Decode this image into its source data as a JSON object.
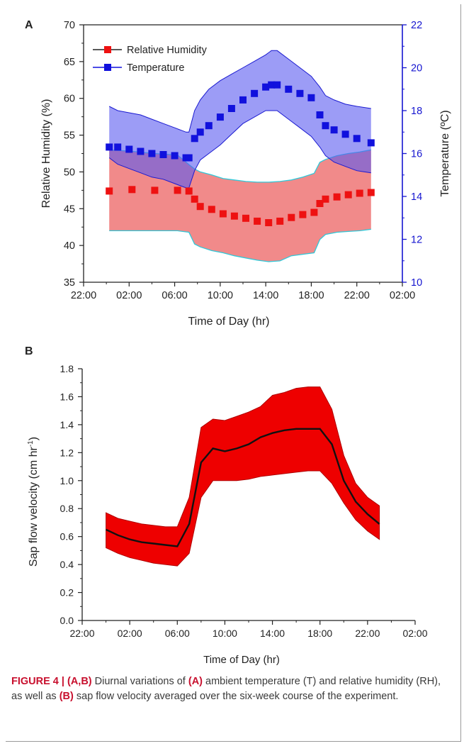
{
  "chart_data": [
    {
      "panel_label": "A",
      "type": "line",
      "xlabel": "Time of Day (hr)",
      "ylabel_left": "Relative Humidity (%)",
      "ylabel_right": "Temperature (ºC)",
      "x_tick_labels": [
        "22:00",
        "02:00",
        "06:00",
        "10:00",
        "14:00",
        "18:00",
        "22:00",
        "02:00"
      ],
      "x_ticks_hours": [
        22,
        26,
        30,
        34,
        38,
        42,
        46,
        50
      ],
      "xlim_hours": [
        22,
        50
      ],
      "ylim_left": [
        35,
        70
      ],
      "ylim_right": [
        10,
        22
      ],
      "y_ticks_left": [
        35,
        40,
        45,
        50,
        55,
        60,
        65,
        70
      ],
      "y_ticks_right": [
        10,
        12,
        14,
        16,
        18,
        20,
        22
      ],
      "legend_position": "top-left",
      "legend": [
        "Relative Humidity",
        "Temperature"
      ],
      "colors": {
        "rh": "#ee1111",
        "rh_band": "#f08080",
        "rh_band_edge": "#30c8d8",
        "temp": "#1111dd",
        "temp_band": "#7777ee",
        "temp_band_edge": "#1a1ad0",
        "right_axis": "#1515d0"
      },
      "series": [
        {
          "name": "Relative Humidity",
          "axis": "left",
          "x": [
            24.25,
            26.25,
            28.25,
            30.25,
            31.25,
            31.75,
            32.25,
            33.25,
            34.25,
            35.25,
            36.25,
            37.25,
            38.25,
            39.25,
            40.25,
            41.25,
            42.25,
            42.75,
            43.25,
            44.25,
            45.25,
            46.25,
            47.25
          ],
          "y": [
            47.4,
            47.6,
            47.5,
            47.5,
            47.4,
            46.3,
            45.3,
            44.9,
            44.3,
            44.0,
            43.7,
            43.3,
            43.1,
            43.3,
            43.8,
            44.2,
            44.5,
            45.7,
            46.3,
            46.6,
            46.9,
            47.1,
            47.2
          ],
          "upper": [
            53.0,
            52.8,
            52.5,
            52.3,
            51.0,
            50.4,
            50.0,
            49.6,
            49.1,
            48.9,
            48.7,
            48.6,
            48.6,
            48.7,
            48.9,
            49.3,
            49.8,
            51.3,
            51.7,
            52.2,
            52.5,
            52.7,
            53.0
          ],
          "lower": [
            42.0,
            42.0,
            42.0,
            42.0,
            41.8,
            40.2,
            39.8,
            39.3,
            39.0,
            38.6,
            38.3,
            38.0,
            37.8,
            37.9,
            38.6,
            38.8,
            39.0,
            40.8,
            41.5,
            41.8,
            41.9,
            42.0,
            42.2
          ]
        },
        {
          "name": "Temperature",
          "axis": "right",
          "x": [
            24.25,
            25.0,
            26.0,
            27.0,
            28.0,
            29.0,
            30.0,
            31.0,
            31.25,
            31.75,
            32.25,
            33.0,
            34.0,
            35.0,
            36.0,
            37.0,
            38.0,
            38.5,
            39.0,
            40.0,
            41.0,
            42.0,
            42.75,
            43.25,
            44.0,
            45.0,
            46.0,
            47.25
          ],
          "y": [
            16.3,
            16.3,
            16.2,
            16.1,
            16.0,
            15.95,
            15.9,
            15.8,
            15.8,
            16.7,
            17.0,
            17.3,
            17.7,
            18.1,
            18.5,
            18.8,
            19.1,
            19.2,
            19.2,
            19.0,
            18.8,
            18.6,
            17.8,
            17.3,
            17.1,
            16.9,
            16.7,
            16.5
          ],
          "upper": [
            18.2,
            18.0,
            17.9,
            17.8,
            17.6,
            17.4,
            17.2,
            17.0,
            17.0,
            18.0,
            18.5,
            19.0,
            19.4,
            19.7,
            20.0,
            20.3,
            20.6,
            20.8,
            20.8,
            20.4,
            20.0,
            19.6,
            19.1,
            18.7,
            18.5,
            18.3,
            18.2,
            18.1
          ],
          "lower": [
            15.8,
            15.5,
            15.3,
            15.1,
            14.9,
            14.8,
            14.6,
            14.4,
            14.4,
            15.2,
            15.7,
            16.0,
            16.4,
            16.9,
            17.4,
            17.7,
            18.0,
            18.0,
            18.0,
            17.6,
            17.2,
            16.8,
            16.3,
            15.9,
            15.6,
            15.4,
            15.2,
            15.1
          ]
        }
      ]
    },
    {
      "panel_label": "B",
      "type": "line",
      "xlabel": "Time of Day (hr)",
      "ylabel": "Sap flow velocity (cm hr",
      "ylabel_sup": "-1",
      "ylabel_close": ")",
      "x_tick_labels": [
        "22:00",
        "02:00",
        "06:00",
        "10:00",
        "14:00",
        "18:00",
        "22:00",
        "02:00"
      ],
      "x_ticks_hours": [
        22,
        26,
        30,
        34,
        38,
        42,
        46,
        50
      ],
      "xlim_hours": [
        22,
        50
      ],
      "ylim": [
        0.0,
        1.8
      ],
      "y_ticks": [
        0.0,
        0.2,
        0.4,
        0.6,
        0.8,
        1.0,
        1.2,
        1.4,
        1.6,
        1.8
      ],
      "y_tick_labels": [
        "0.0",
        "0.2",
        "0.4",
        "0.6",
        "0.8",
        "1.0",
        "1.2",
        "1.4",
        "1.6",
        "1.8"
      ],
      "colors": {
        "mean": "#111111",
        "band": "#ee0000",
        "band_edge": "#b00000"
      },
      "series": [
        {
          "name": "Sap flow velocity",
          "x": [
            24,
            25,
            26,
            27,
            28,
            29,
            30,
            31,
            32,
            33,
            34,
            35,
            36,
            37,
            38,
            39,
            40,
            41,
            42,
            43,
            44,
            45,
            46,
            47
          ],
          "y": [
            0.65,
            0.61,
            0.58,
            0.56,
            0.55,
            0.54,
            0.53,
            0.69,
            1.13,
            1.23,
            1.21,
            1.23,
            1.26,
            1.31,
            1.34,
            1.36,
            1.37,
            1.37,
            1.37,
            1.26,
            1.0,
            0.85,
            0.76,
            0.69
          ],
          "upper": [
            0.77,
            0.73,
            0.71,
            0.69,
            0.68,
            0.67,
            0.67,
            0.88,
            1.38,
            1.44,
            1.43,
            1.46,
            1.49,
            1.53,
            1.61,
            1.63,
            1.66,
            1.67,
            1.67,
            1.51,
            1.18,
            0.98,
            0.88,
            0.82
          ],
          "lower": [
            0.52,
            0.48,
            0.45,
            0.43,
            0.41,
            0.4,
            0.39,
            0.48,
            0.88,
            1.0,
            1.0,
            1.0,
            1.01,
            1.03,
            1.04,
            1.05,
            1.06,
            1.07,
            1.07,
            0.98,
            0.84,
            0.72,
            0.64,
            0.58
          ]
        }
      ]
    }
  ],
  "caption": {
    "figure_label": "FIGURE 4 |",
    "panels": "(A,B)",
    "text_1": "Diurnal variations of",
    "a_ref": "(A)",
    "text_2": "ambient temperature (T) and relative humidity (RH), as well as",
    "b_ref": "(B)",
    "text_3": "sap flow velocity averaged over the six-week course of the experiment."
  }
}
